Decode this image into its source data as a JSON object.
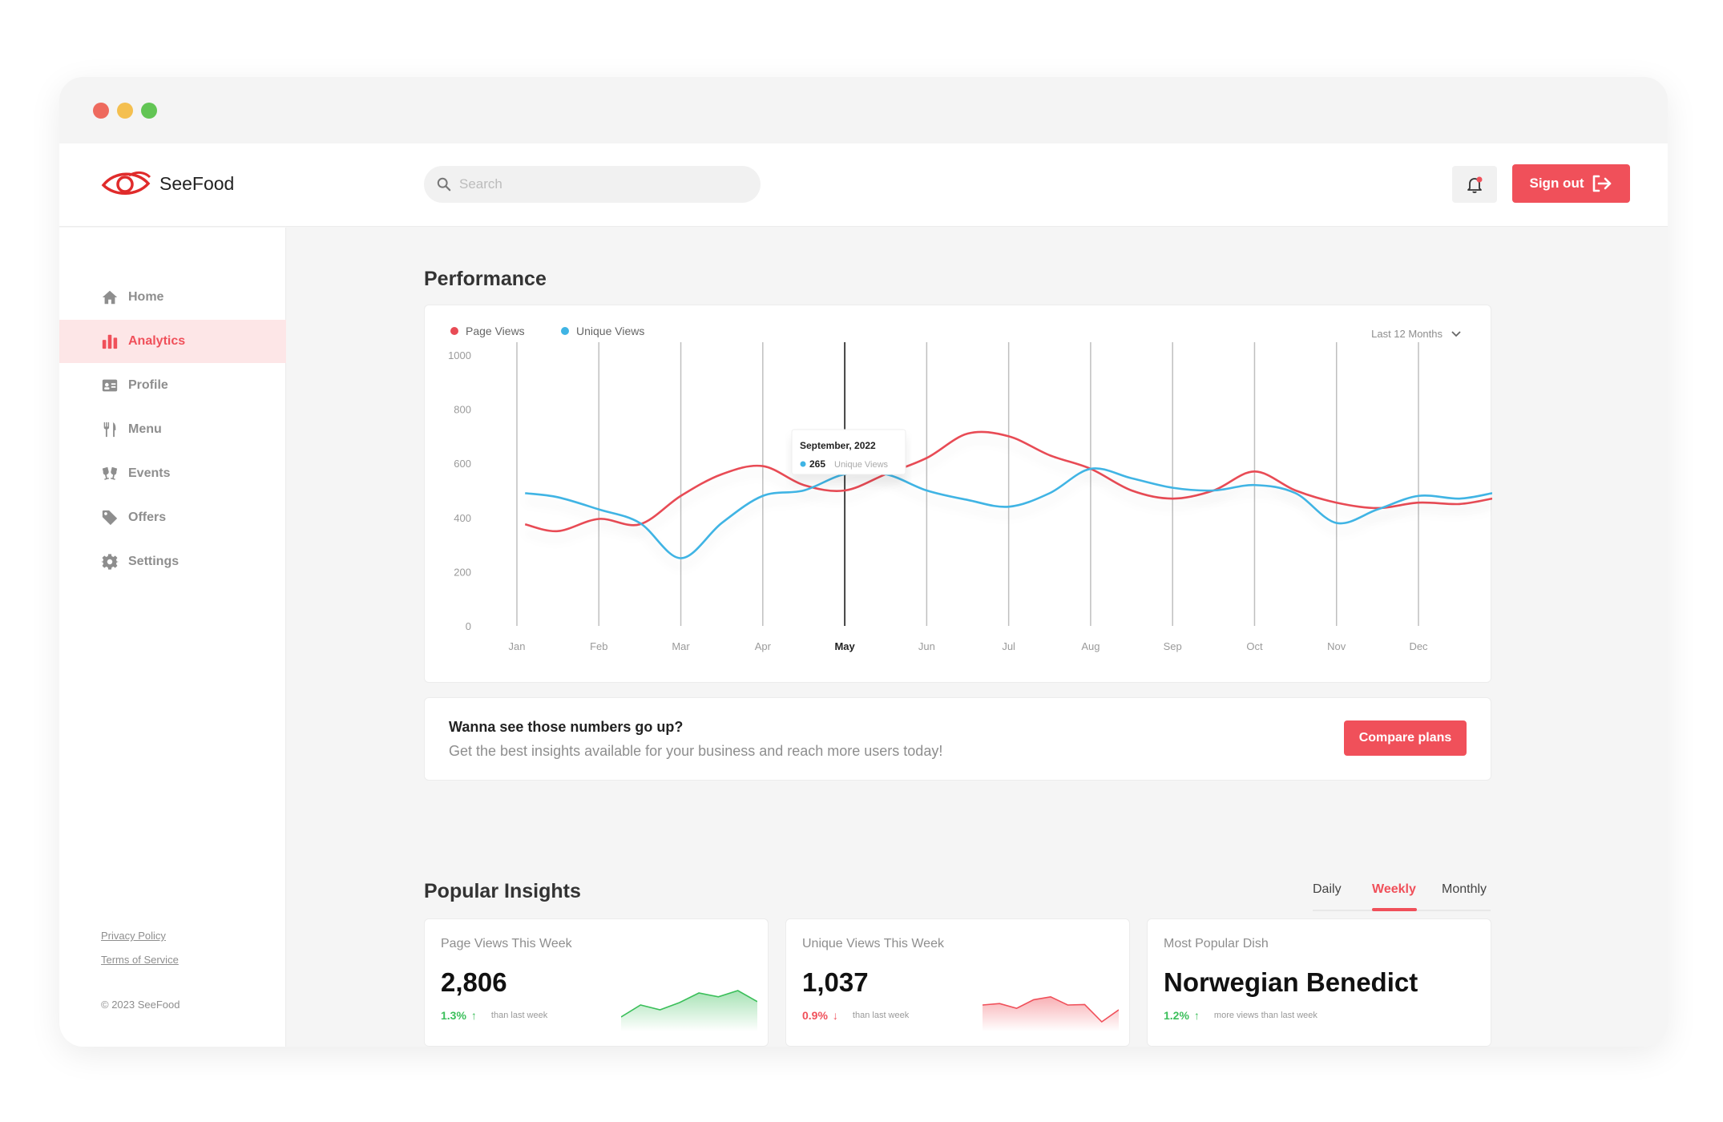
{
  "app": {
    "name": "SeeFood",
    "colors": {
      "accent": "#f0505a",
      "page_views": "#e84b55",
      "unique_views": "#3fb4e4",
      "up": "#3bbf5a",
      "down": "#f0505a"
    }
  },
  "header": {
    "search_placeholder": "Search",
    "notification_icon": "bell-icon",
    "sign_out_label": "Sign out"
  },
  "sidebar": {
    "items": [
      {
        "label": "Home",
        "icon": "home-icon",
        "active": false
      },
      {
        "label": "Analytics",
        "icon": "bar-chart-icon",
        "active": true
      },
      {
        "label": "Profile",
        "icon": "id-card-icon",
        "active": false
      },
      {
        "label": "Menu",
        "icon": "utensils-icon",
        "active": false
      },
      {
        "label": "Events",
        "icon": "glasses-cheers-icon",
        "active": false
      },
      {
        "label": "Offers",
        "icon": "tag-icon",
        "active": false
      },
      {
        "label": "Settings",
        "icon": "gear-icon",
        "active": false
      }
    ],
    "footer": {
      "privacy": "Privacy Policy",
      "terms": "Terms of Service",
      "copyright": "© 2023 SeeFood"
    }
  },
  "performance": {
    "title": "Performance",
    "range_label": "Last 12 Months",
    "tooltip": {
      "title": "September, 2022",
      "value": "265",
      "label": "Unique Views"
    }
  },
  "chart_data": {
    "type": "line",
    "categories": [
      "Jan",
      "Feb",
      "Mar",
      "Apr",
      "May",
      "Jun",
      "Jul",
      "Aug",
      "Sep",
      "Oct",
      "Nov",
      "Dec"
    ],
    "highlighted_category": "May",
    "y_ticks": [
      "0",
      "200",
      "400",
      "600",
      "800",
      "1000"
    ],
    "ylim": [
      0,
      1000
    ],
    "grid": "vertical",
    "legend_position": "top-left",
    "series": [
      {
        "name": "Page Views",
        "color": "#e84b55",
        "x": [
          0.1,
          0.5,
          1,
          1.5,
          2,
          2.5,
          3,
          3.5,
          4,
          4.5,
          5,
          5.5,
          6,
          6.5,
          7,
          7.5,
          8,
          8.5,
          9,
          9.5,
          10,
          10.5,
          11,
          11.5,
          11.9
        ],
        "values": [
          375,
          350,
          395,
          375,
          480,
          560,
          590,
          520,
          500,
          560,
          620,
          710,
          700,
          630,
          580,
          500,
          470,
          500,
          570,
          500,
          455,
          435,
          455,
          450,
          470
        ]
      },
      {
        "name": "Unique Views",
        "color": "#3fb4e4",
        "x": [
          0.1,
          0.5,
          1,
          1.5,
          2,
          2.5,
          3,
          3.5,
          4,
          4.5,
          5,
          5.5,
          6,
          6.5,
          7,
          7.5,
          8,
          8.5,
          9,
          9.5,
          10,
          10.5,
          11,
          11.5,
          11.9
        ],
        "values": [
          490,
          475,
          430,
          380,
          250,
          380,
          480,
          500,
          560,
          560,
          500,
          465,
          440,
          490,
          580,
          545,
          510,
          500,
          520,
          490,
          380,
          430,
          480,
          470,
          490
        ]
      }
    ]
  },
  "promo": {
    "title": "Wanna see those numbers go up?",
    "subtitle": "Get the best insights available for your business and reach more users today!",
    "button": "Compare plans"
  },
  "insights": {
    "title": "Popular Insights",
    "tabs": [
      "Daily",
      "Weekly",
      "Monthly"
    ],
    "active_tab": "Weekly",
    "cards": [
      {
        "label": "Page Views This Week",
        "value": "2,806",
        "change": "1.3%",
        "direction": "up",
        "note": "than last week",
        "spark": [
          30,
          55,
          45,
          60,
          80,
          72,
          85,
          62
        ]
      },
      {
        "label": "Unique Views This Week",
        "value": "1,037",
        "change": "0.9%",
        "direction": "down",
        "note": "than last week",
        "spark": [
          55,
          58,
          48,
          66,
          72,
          55,
          56,
          20,
          45
        ]
      },
      {
        "label": "Most Popular Dish",
        "value": "Norwegian Benedict",
        "change": "1.2%",
        "direction": "up",
        "note": "more views than last week"
      }
    ]
  }
}
